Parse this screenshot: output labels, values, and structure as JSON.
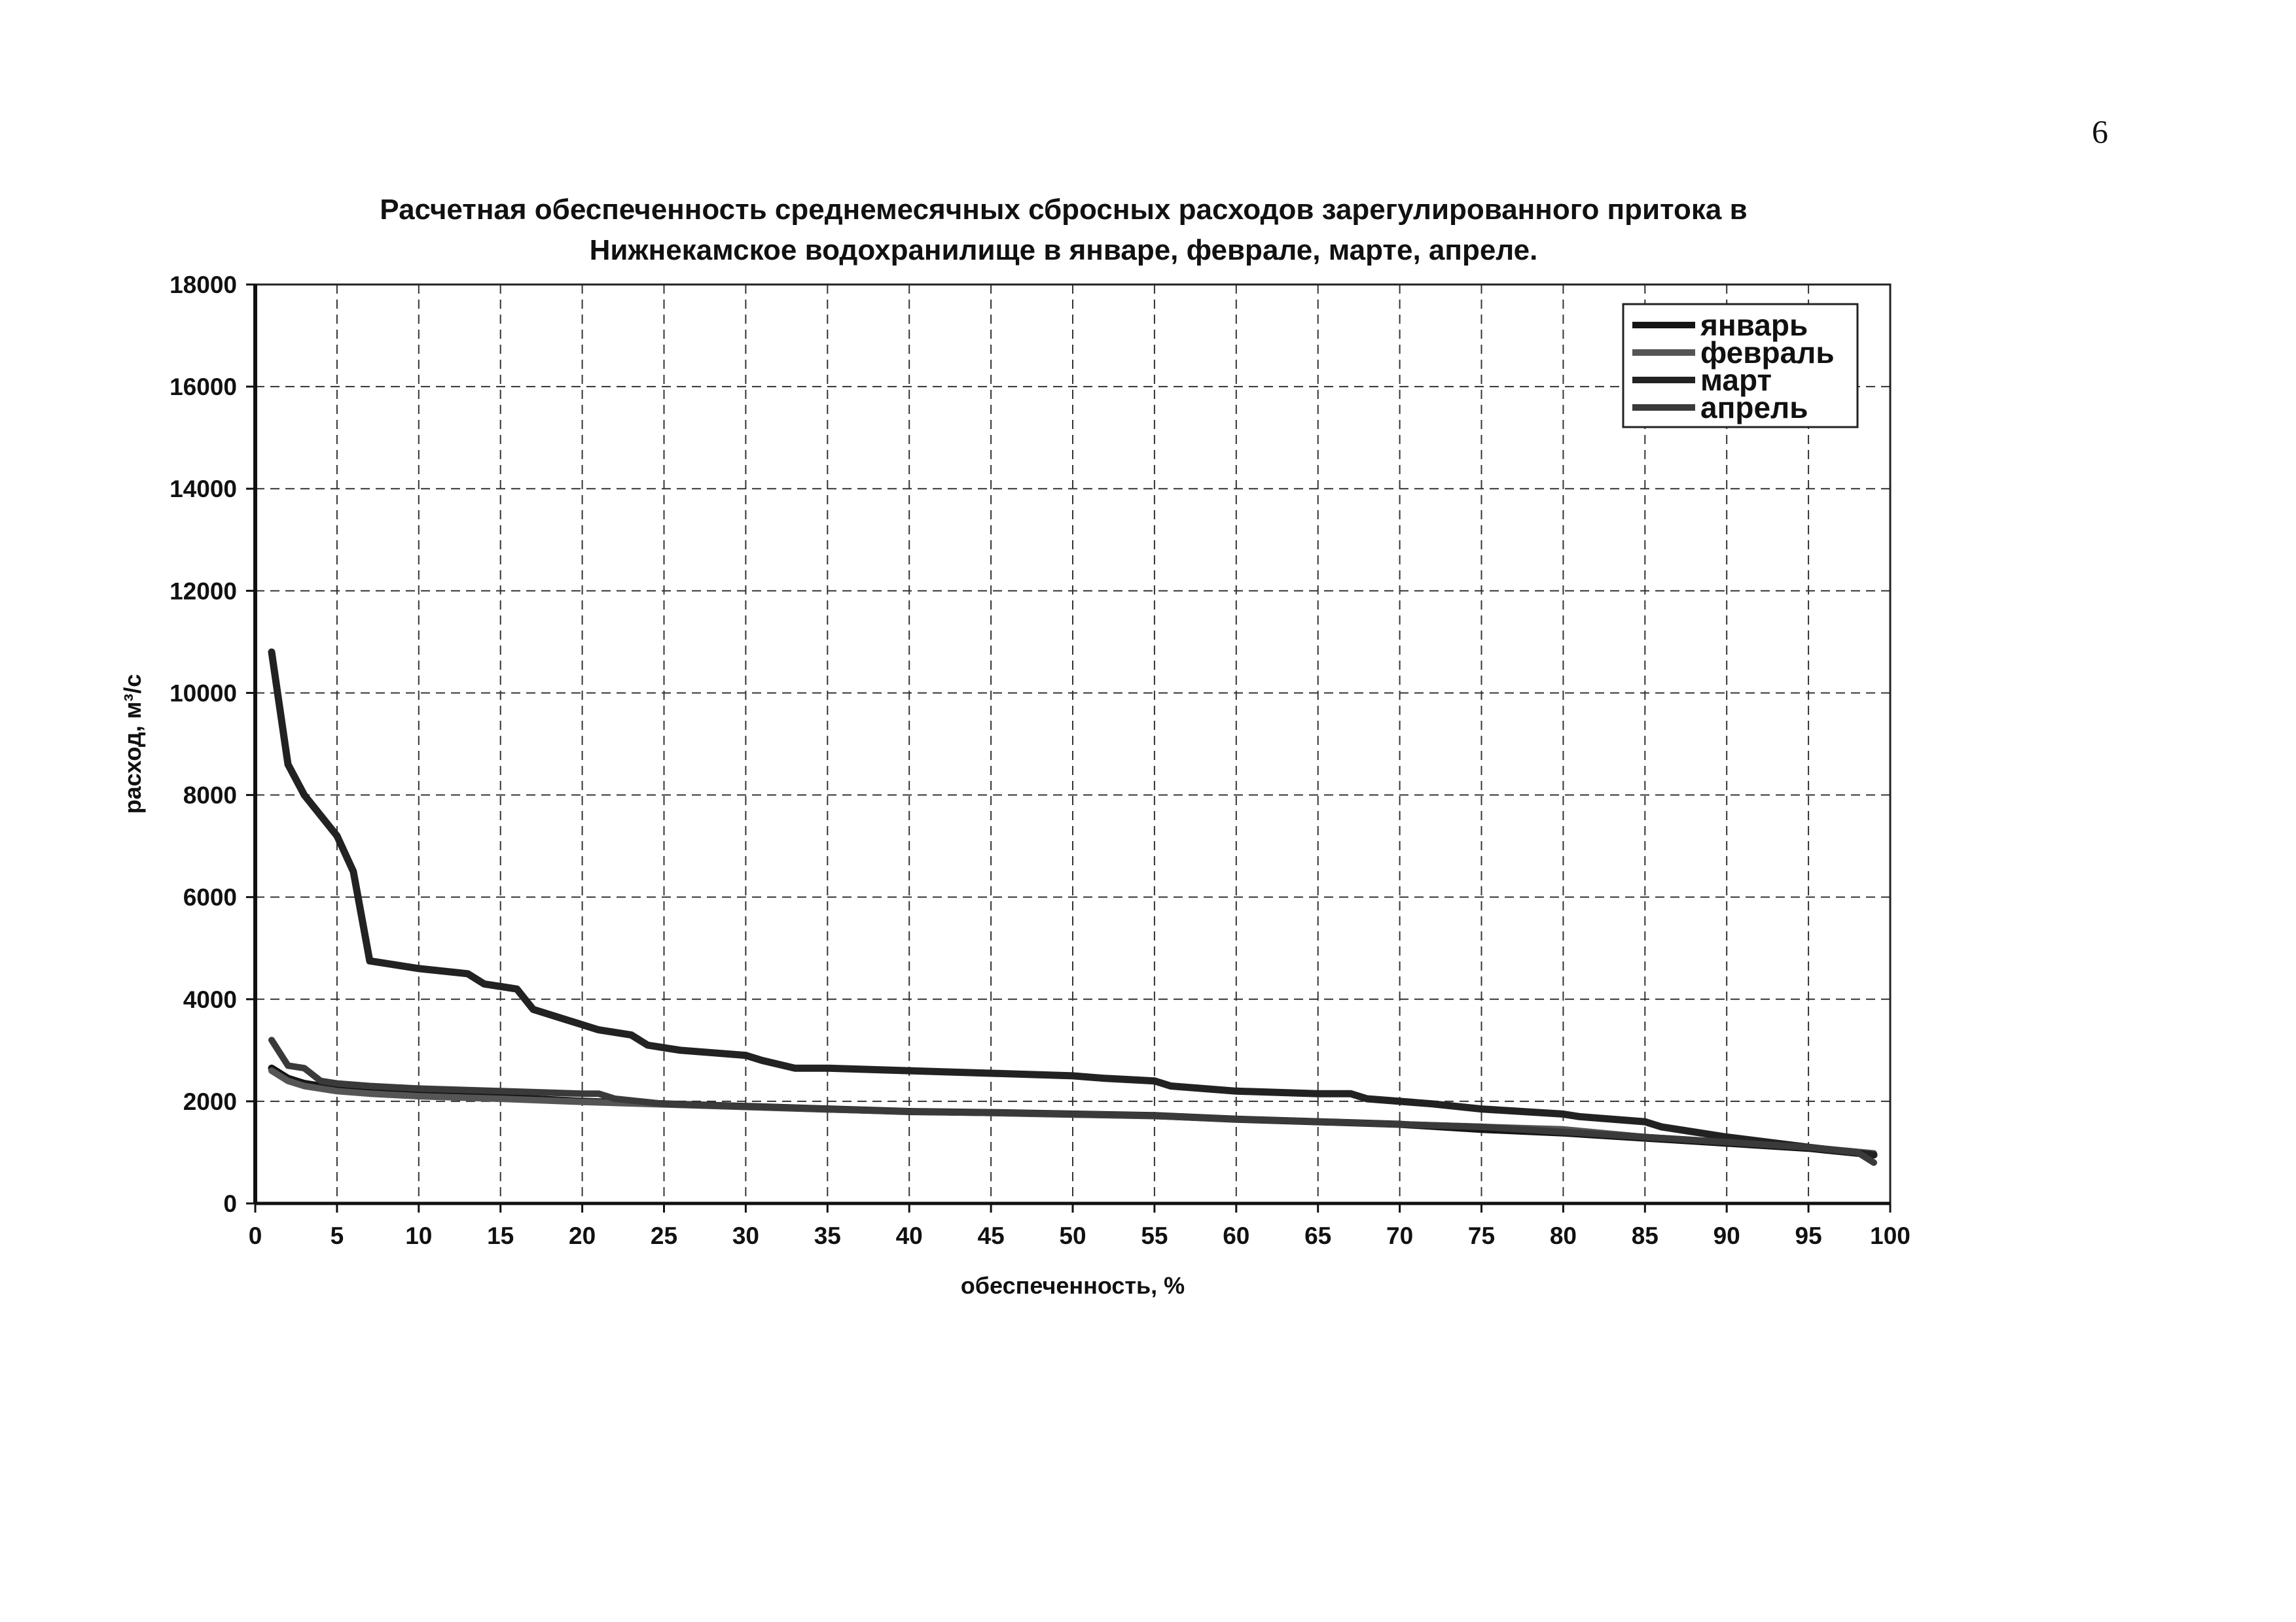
{
  "page": {
    "number": "6"
  },
  "chart_data": {
    "type": "line",
    "title_line1": "Расчетная обеспеченность среднемесячных сбросных расходов зарегулированного притока в",
    "title_line2": "Нижнекамское водохранилище в январе, феврале, марте, апреле.",
    "xlabel": "обеспеченность, %",
    "ylabel": "расход, м³/с",
    "xlim": [
      0,
      100
    ],
    "ylim": [
      0,
      18000
    ],
    "xticks": [
      0,
      5,
      10,
      15,
      20,
      25,
      30,
      35,
      40,
      45,
      50,
      55,
      60,
      65,
      70,
      75,
      80,
      85,
      90,
      95,
      100
    ],
    "yticks": [
      0,
      2000,
      4000,
      6000,
      8000,
      10000,
      12000,
      14000,
      16000,
      18000
    ],
    "grid": true,
    "legend_position": "top-right",
    "series": [
      {
        "name": "январь",
        "color": "#151515",
        "x": [
          1,
          2,
          3,
          4,
          5,
          7,
          10,
          15,
          20,
          25,
          30,
          35,
          40,
          45,
          50,
          55,
          60,
          65,
          70,
          75,
          80,
          85,
          90,
          95,
          99
        ],
        "y": [
          2650,
          2450,
          2350,
          2300,
          2250,
          2200,
          2150,
          2080,
          2000,
          1950,
          1900,
          1850,
          1800,
          1780,
          1750,
          1720,
          1650,
          1600,
          1550,
          1450,
          1380,
          1280,
          1180,
          1080,
          950
        ]
      },
      {
        "name": "февраль",
        "color": "#555555",
        "x": [
          1,
          2,
          3,
          4,
          5,
          7,
          10,
          15,
          20,
          25,
          30,
          35,
          40,
          45,
          50,
          55,
          60,
          65,
          70,
          75,
          80,
          85,
          90,
          95,
          99
        ],
        "y": [
          2600,
          2400,
          2300,
          2250,
          2200,
          2150,
          2100,
          2050,
          1990,
          1940,
          1890,
          1840,
          1800,
          1770,
          1740,
          1710,
          1650,
          1600,
          1550,
          1500,
          1450,
          1300,
          1200,
          1100,
          980
        ]
      },
      {
        "name": "март",
        "color": "#222222",
        "x": [
          1,
          2,
          3,
          5,
          6,
          7,
          8,
          10,
          13,
          14,
          16,
          17,
          19,
          21,
          23,
          24,
          26,
          28,
          30,
          31,
          33,
          35,
          40,
          45,
          50,
          52,
          55,
          56,
          60,
          65,
          67,
          68,
          70,
          72,
          75,
          80,
          81,
          85,
          86,
          90,
          95,
          99
        ],
        "y": [
          10800,
          8600,
          8000,
          7200,
          6500,
          4750,
          4700,
          4600,
          4500,
          4300,
          4200,
          3800,
          3600,
          3400,
          3300,
          3100,
          3000,
          2950,
          2900,
          2800,
          2650,
          2650,
          2600,
          2550,
          2500,
          2450,
          2400,
          2300,
          2200,
          2150,
          2150,
          2050,
          2000,
          1950,
          1850,
          1750,
          1700,
          1600,
          1500,
          1300,
          1100,
          950
        ]
      },
      {
        "name": "апрель",
        "color": "#3a3a3a",
        "x": [
          1,
          2,
          3,
          4,
          5,
          7,
          10,
          15,
          20,
          21,
          22,
          25,
          30,
          35,
          40,
          45,
          50,
          55,
          60,
          65,
          70,
          75,
          80,
          85,
          90,
          95,
          98,
          99
        ],
        "y": [
          3200,
          2700,
          2650,
          2400,
          2350,
          2300,
          2250,
          2200,
          2150,
          2150,
          2050,
          1950,
          1900,
          1850,
          1800,
          1780,
          1750,
          1720,
          1650,
          1600,
          1550,
          1500,
          1400,
          1300,
          1200,
          1100,
          1000,
          800
        ]
      }
    ]
  }
}
